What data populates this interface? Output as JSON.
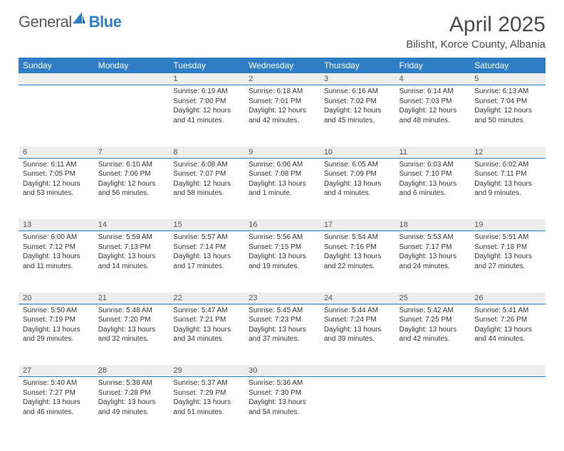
{
  "logo": {
    "text1": "General",
    "text2": "Blue"
  },
  "title": "April 2025",
  "location": "Bilisht, Korce County, Albania",
  "colors": {
    "header_bg": "#2f7dc4",
    "header_text": "#ffffff",
    "daynum_bg": "#ecedee",
    "border": "#2f7dc4",
    "text": "#333333"
  },
  "weekdays": [
    "Sunday",
    "Monday",
    "Tuesday",
    "Wednesday",
    "Thursday",
    "Friday",
    "Saturday"
  ],
  "weeks": [
    [
      null,
      null,
      {
        "n": "1",
        "sr": "Sunrise: 6:19 AM",
        "ss": "Sunset: 7:00 PM",
        "d1": "Daylight: 12 hours",
        "d2": "and 41 minutes."
      },
      {
        "n": "2",
        "sr": "Sunrise: 6:18 AM",
        "ss": "Sunset: 7:01 PM",
        "d1": "Daylight: 12 hours",
        "d2": "and 42 minutes."
      },
      {
        "n": "3",
        "sr": "Sunrise: 6:16 AM",
        "ss": "Sunset: 7:02 PM",
        "d1": "Daylight: 12 hours",
        "d2": "and 45 minutes."
      },
      {
        "n": "4",
        "sr": "Sunrise: 6:14 AM",
        "ss": "Sunset: 7:03 PM",
        "d1": "Daylight: 12 hours",
        "d2": "and 48 minutes."
      },
      {
        "n": "5",
        "sr": "Sunrise: 6:13 AM",
        "ss": "Sunset: 7:04 PM",
        "d1": "Daylight: 12 hours",
        "d2": "and 50 minutes."
      }
    ],
    [
      {
        "n": "6",
        "sr": "Sunrise: 6:11 AM",
        "ss": "Sunset: 7:05 PM",
        "d1": "Daylight: 12 hours",
        "d2": "and 53 minutes."
      },
      {
        "n": "7",
        "sr": "Sunrise: 6:10 AM",
        "ss": "Sunset: 7:06 PM",
        "d1": "Daylight: 12 hours",
        "d2": "and 56 minutes."
      },
      {
        "n": "8",
        "sr": "Sunrise: 6:08 AM",
        "ss": "Sunset: 7:07 PM",
        "d1": "Daylight: 12 hours",
        "d2": "and 58 minutes."
      },
      {
        "n": "9",
        "sr": "Sunrise: 6:06 AM",
        "ss": "Sunset: 7:08 PM",
        "d1": "Daylight: 13 hours",
        "d2": "and 1 minute."
      },
      {
        "n": "10",
        "sr": "Sunrise: 6:05 AM",
        "ss": "Sunset: 7:09 PM",
        "d1": "Daylight: 13 hours",
        "d2": "and 4 minutes."
      },
      {
        "n": "11",
        "sr": "Sunrise: 6:03 AM",
        "ss": "Sunset: 7:10 PM",
        "d1": "Daylight: 13 hours",
        "d2": "and 6 minutes."
      },
      {
        "n": "12",
        "sr": "Sunrise: 6:02 AM",
        "ss": "Sunset: 7:11 PM",
        "d1": "Daylight: 13 hours",
        "d2": "and 9 minutes."
      }
    ],
    [
      {
        "n": "13",
        "sr": "Sunrise: 6:00 AM",
        "ss": "Sunset: 7:12 PM",
        "d1": "Daylight: 13 hours",
        "d2": "and 11 minutes."
      },
      {
        "n": "14",
        "sr": "Sunrise: 5:59 AM",
        "ss": "Sunset: 7:13 PM",
        "d1": "Daylight: 13 hours",
        "d2": "and 14 minutes."
      },
      {
        "n": "15",
        "sr": "Sunrise: 5:57 AM",
        "ss": "Sunset: 7:14 PM",
        "d1": "Daylight: 13 hours",
        "d2": "and 17 minutes."
      },
      {
        "n": "16",
        "sr": "Sunrise: 5:56 AM",
        "ss": "Sunset: 7:15 PM",
        "d1": "Daylight: 13 hours",
        "d2": "and 19 minutes."
      },
      {
        "n": "17",
        "sr": "Sunrise: 5:54 AM",
        "ss": "Sunset: 7:16 PM",
        "d1": "Daylight: 13 hours",
        "d2": "and 22 minutes."
      },
      {
        "n": "18",
        "sr": "Sunrise: 5:53 AM",
        "ss": "Sunset: 7:17 PM",
        "d1": "Daylight: 13 hours",
        "d2": "and 24 minutes."
      },
      {
        "n": "19",
        "sr": "Sunrise: 5:51 AM",
        "ss": "Sunset: 7:18 PM",
        "d1": "Daylight: 13 hours",
        "d2": "and 27 minutes."
      }
    ],
    [
      {
        "n": "20",
        "sr": "Sunrise: 5:50 AM",
        "ss": "Sunset: 7:19 PM",
        "d1": "Daylight: 13 hours",
        "d2": "and 29 minutes."
      },
      {
        "n": "21",
        "sr": "Sunrise: 5:48 AM",
        "ss": "Sunset: 7:20 PM",
        "d1": "Daylight: 13 hours",
        "d2": "and 32 minutes."
      },
      {
        "n": "22",
        "sr": "Sunrise: 5:47 AM",
        "ss": "Sunset: 7:21 PM",
        "d1": "Daylight: 13 hours",
        "d2": "and 34 minutes."
      },
      {
        "n": "23",
        "sr": "Sunrise: 5:45 AM",
        "ss": "Sunset: 7:23 PM",
        "d1": "Daylight: 13 hours",
        "d2": "and 37 minutes."
      },
      {
        "n": "24",
        "sr": "Sunrise: 5:44 AM",
        "ss": "Sunset: 7:24 PM",
        "d1": "Daylight: 13 hours",
        "d2": "and 39 minutes."
      },
      {
        "n": "25",
        "sr": "Sunrise: 5:42 AM",
        "ss": "Sunset: 7:25 PM",
        "d1": "Daylight: 13 hours",
        "d2": "and 42 minutes."
      },
      {
        "n": "26",
        "sr": "Sunrise: 5:41 AM",
        "ss": "Sunset: 7:26 PM",
        "d1": "Daylight: 13 hours",
        "d2": "and 44 minutes."
      }
    ],
    [
      {
        "n": "27",
        "sr": "Sunrise: 5:40 AM",
        "ss": "Sunset: 7:27 PM",
        "d1": "Daylight: 13 hours",
        "d2": "and 46 minutes."
      },
      {
        "n": "28",
        "sr": "Sunrise: 5:38 AM",
        "ss": "Sunset: 7:28 PM",
        "d1": "Daylight: 13 hours",
        "d2": "and 49 minutes."
      },
      {
        "n": "29",
        "sr": "Sunrise: 5:37 AM",
        "ss": "Sunset: 7:29 PM",
        "d1": "Daylight: 13 hours",
        "d2": "and 51 minutes."
      },
      {
        "n": "30",
        "sr": "Sunrise: 5:36 AM",
        "ss": "Sunset: 7:30 PM",
        "d1": "Daylight: 13 hours",
        "d2": "and 54 minutes."
      },
      null,
      null,
      null
    ]
  ]
}
